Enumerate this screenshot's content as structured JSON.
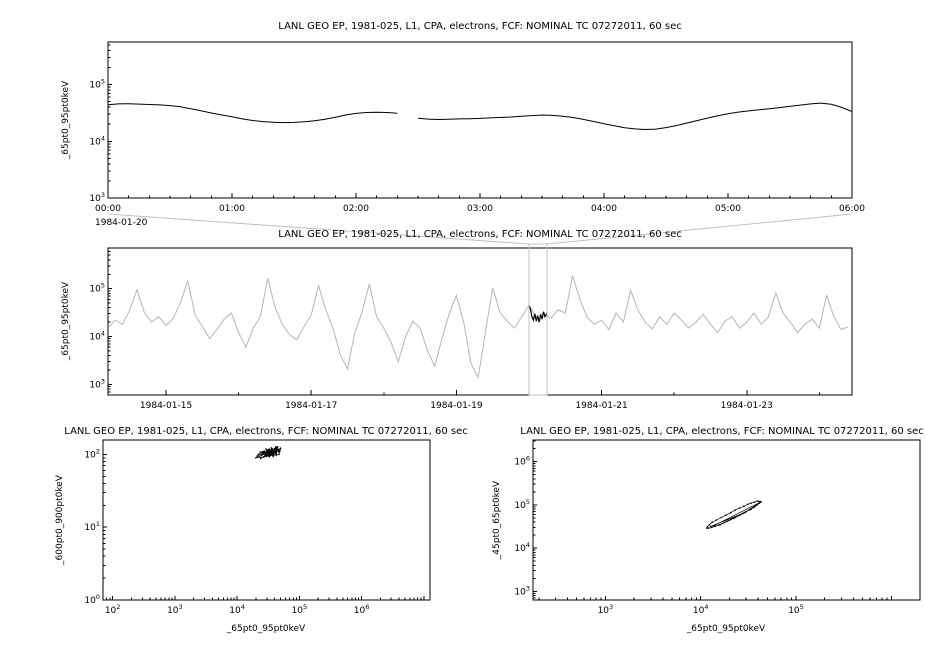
{
  "page": {
    "background": "#ffffff"
  },
  "colors": {
    "axis": "#000000",
    "series": "#000000",
    "overview_series": "#b5b5b5",
    "highlight_series": "#000000",
    "selection_box": "#c0c0c0"
  },
  "chart_data": [
    {
      "panel": "top-timeseries",
      "type": "line",
      "title": "LANL GEO EP, 1981-025, L1, CPA, electrons, FCF: NOMINAL TC 07272011, 60 sec",
      "ylabel": "_65pt0_95pt0keV",
      "x_start_date": "1984-01-20",
      "x_unit": "minutes from 1984-01-20T00:00 UT",
      "xlim": [
        0,
        360
      ],
      "xticks": [
        {
          "v": 0,
          "label": "00:00"
        },
        {
          "v": 60,
          "label": "01:00"
        },
        {
          "v": 120,
          "label": "02:00"
        },
        {
          "v": 180,
          "label": "03:00"
        },
        {
          "v": 240,
          "label": "04:00"
        },
        {
          "v": 300,
          "label": "05:00"
        },
        {
          "v": 360,
          "label": "06:00"
        }
      ],
      "y_scale": "log",
      "ylim": [
        1000,
        562000
      ],
      "ytick_exponents": [
        3,
        4,
        5
      ],
      "points": [
        [
          0,
          44000
        ],
        [
          5,
          45500
        ],
        [
          10,
          46000
        ],
        [
          15,
          45200
        ],
        [
          20,
          44500
        ],
        [
          25,
          43800
        ],
        [
          30,
          42500
        ],
        [
          35,
          40500
        ],
        [
          40,
          37500
        ],
        [
          45,
          34500
        ],
        [
          50,
          31500
        ],
        [
          55,
          29000
        ],
        [
          60,
          27000
        ],
        [
          65,
          24800
        ],
        [
          70,
          23200
        ],
        [
          75,
          22200
        ],
        [
          80,
          21600
        ],
        [
          85,
          21300
        ],
        [
          90,
          21500
        ],
        [
          95,
          22000
        ],
        [
          100,
          23000
        ],
        [
          105,
          24500
        ],
        [
          110,
          26500
        ],
        [
          115,
          29000
        ],
        [
          120,
          31000
        ],
        [
          125,
          32200
        ],
        [
          130,
          32600
        ],
        [
          135,
          32200
        ],
        [
          140,
          31200
        ],
        [
          145,
          null
        ],
        [
          150,
          25500
        ],
        [
          155,
          24600
        ],
        [
          160,
          24200
        ],
        [
          165,
          24400
        ],
        [
          170,
          24800
        ],
        [
          175,
          25000
        ],
        [
          180,
          25300
        ],
        [
          185,
          25800
        ],
        [
          190,
          26300
        ],
        [
          195,
          26800
        ],
        [
          200,
          27600
        ],
        [
          205,
          28300
        ],
        [
          210,
          29000
        ],
        [
          215,
          28600
        ],
        [
          220,
          27600
        ],
        [
          225,
          26200
        ],
        [
          230,
          24300
        ],
        [
          235,
          22300
        ],
        [
          240,
          20300
        ],
        [
          245,
          18700
        ],
        [
          250,
          17300
        ],
        [
          255,
          16500
        ],
        [
          260,
          16100
        ],
        [
          265,
          16400
        ],
        [
          270,
          17400
        ],
        [
          275,
          18900
        ],
        [
          280,
          20900
        ],
        [
          285,
          23100
        ],
        [
          290,
          25600
        ],
        [
          295,
          28100
        ],
        [
          300,
          30600
        ],
        [
          305,
          32700
        ],
        [
          310,
          34300
        ],
        [
          315,
          35800
        ],
        [
          320,
          37300
        ],
        [
          325,
          39200
        ],
        [
          330,
          41300
        ],
        [
          335,
          43400
        ],
        [
          340,
          45600
        ],
        [
          345,
          47100
        ],
        [
          350,
          44800
        ],
        [
          355,
          39500
        ],
        [
          360,
          33500
        ]
      ]
    },
    {
      "panel": "overview-timeseries",
      "type": "line",
      "title": "LANL GEO EP, 1981-025, L1, CPA, electrons, FCF: NOMINAL TC 07272011, 60 sec",
      "ylabel": "_65pt0_95pt0keV",
      "x_unit": "day of January 1984",
      "xlim": [
        14.2,
        24.45
      ],
      "xticks": [
        {
          "v": 15,
          "label": "1984-01-15"
        },
        {
          "v": 17,
          "label": "1984-01-17"
        },
        {
          "v": 19,
          "label": "1984-01-19"
        },
        {
          "v": 21,
          "label": "1984-01-21"
        },
        {
          "v": 23,
          "label": "1984-01-23"
        }
      ],
      "y_scale": "log",
      "ylim": [
        600,
        708000
      ],
      "ytick_exponents": [
        3,
        4,
        5
      ],
      "selection_window": [
        20.0,
        20.25
      ],
      "points": [
        [
          14.2,
          15000
        ],
        [
          14.3,
          22000
        ],
        [
          14.4,
          18000
        ],
        [
          14.5,
          36000
        ],
        [
          14.6,
          95000
        ],
        [
          14.7,
          32000
        ],
        [
          14.8,
          20000
        ],
        [
          14.9,
          26000
        ],
        [
          15.0,
          17000
        ],
        [
          15.1,
          24000
        ],
        [
          15.2,
          52000
        ],
        [
          15.3,
          145000
        ],
        [
          15.4,
          28000
        ],
        [
          15.5,
          16000
        ],
        [
          15.6,
          9000
        ],
        [
          15.7,
          14000
        ],
        [
          15.8,
          23000
        ],
        [
          15.9,
          31000
        ],
        [
          16.0,
          12000
        ],
        [
          16.1,
          6000
        ],
        [
          16.2,
          15000
        ],
        [
          16.3,
          26000
        ],
        [
          16.4,
          165000
        ],
        [
          16.5,
          42000
        ],
        [
          16.6,
          18000
        ],
        [
          16.7,
          11000
        ],
        [
          16.8,
          8500
        ],
        [
          16.9,
          16000
        ],
        [
          17.0,
          28000
        ],
        [
          17.1,
          115000
        ],
        [
          17.2,
          36000
        ],
        [
          17.3,
          15000
        ],
        [
          17.4,
          4200
        ],
        [
          17.5,
          2100
        ],
        [
          17.6,
          12000
        ],
        [
          17.7,
          32000
        ],
        [
          17.8,
          125000
        ],
        [
          17.9,
          26000
        ],
        [
          18.0,
          15000
        ],
        [
          18.1,
          7500
        ],
        [
          18.2,
          3000
        ],
        [
          18.3,
          10000
        ],
        [
          18.4,
          21000
        ],
        [
          18.5,
          15000
        ],
        [
          18.6,
          5200
        ],
        [
          18.7,
          2400
        ],
        [
          18.8,
          9000
        ],
        [
          18.9,
          30000
        ],
        [
          19.0,
          72000
        ],
        [
          19.1,
          20000
        ],
        [
          19.2,
          2800
        ],
        [
          19.3,
          1400
        ],
        [
          19.4,
          12000
        ],
        [
          19.5,
          105000
        ],
        [
          19.6,
          32000
        ],
        [
          19.7,
          21000
        ],
        [
          19.8,
          15000
        ],
        [
          19.9,
          26000
        ],
        [
          20.0,
          45000
        ],
        [
          20.1,
          26000
        ],
        [
          20.2,
          30000
        ],
        [
          20.3,
          24000
        ],
        [
          20.4,
          36000
        ],
        [
          20.5,
          31000
        ],
        [
          20.6,
          185000
        ],
        [
          20.7,
          62000
        ],
        [
          20.8,
          25000
        ],
        [
          20.9,
          18000
        ],
        [
          21.0,
          22000
        ],
        [
          21.1,
          14000
        ],
        [
          21.2,
          31000
        ],
        [
          21.3,
          20000
        ],
        [
          21.4,
          92000
        ],
        [
          21.5,
          36000
        ],
        [
          21.6,
          20000
        ],
        [
          21.7,
          14500
        ],
        [
          21.8,
          26000
        ],
        [
          21.9,
          18000
        ],
        [
          22.0,
          31000
        ],
        [
          22.1,
          22000
        ],
        [
          22.2,
          15000
        ],
        [
          22.3,
          20000
        ],
        [
          22.4,
          29000
        ],
        [
          22.5,
          18000
        ],
        [
          22.6,
          12000
        ],
        [
          22.7,
          21000
        ],
        [
          22.8,
          26000
        ],
        [
          22.9,
          15000
        ],
        [
          23.0,
          20000
        ],
        [
          23.1,
          31000
        ],
        [
          23.2,
          18000
        ],
        [
          23.3,
          26000
        ],
        [
          23.4,
          82000
        ],
        [
          23.5,
          31000
        ],
        [
          23.6,
          20000
        ],
        [
          23.7,
          12000
        ],
        [
          23.8,
          18000
        ],
        [
          23.9,
          23000
        ],
        [
          24.0,
          15000
        ],
        [
          24.1,
          72000
        ],
        [
          24.2,
          26000
        ],
        [
          24.3,
          14000
        ],
        [
          24.4,
          16000
        ]
      ],
      "highlight_points": [
        [
          20.0,
          45000
        ],
        [
          20.02,
          38000
        ],
        [
          20.04,
          26000
        ],
        [
          20.06,
          22000
        ],
        [
          20.08,
          30000
        ],
        [
          20.1,
          21000
        ],
        [
          20.12,
          27000
        ],
        [
          20.14,
          20000
        ],
        [
          20.16,
          29000
        ],
        [
          20.18,
          23000
        ],
        [
          20.2,
          33000
        ],
        [
          20.22,
          26000
        ],
        [
          20.25,
          31000
        ]
      ]
    },
    {
      "panel": "scatter-600-900-vs-65-95",
      "type": "scatter",
      "title": "LANL GEO EP, 1981-025, L1, CPA, electrons, FCF: NOMINAL TC 07272011, 60 sec",
      "xlabel": "_65pt0_95pt0keV",
      "ylabel": "_600pt0_900pt0keV",
      "x_scale": "log",
      "y_scale": "log",
      "xlim": [
        70,
        12600000
      ],
      "ylim": [
        1,
        158
      ],
      "xtick_exponents": [
        2,
        3,
        4,
        5,
        6
      ],
      "ytick_exponents": [
        0,
        1,
        2
      ],
      "points": [
        [
          21000,
          95
        ],
        [
          23000,
          102
        ],
        [
          25000,
          98
        ],
        [
          26000,
          110
        ],
        [
          28000,
          105
        ],
        [
          30000,
          112
        ],
        [
          32000,
          100
        ],
        [
          33000,
          118
        ],
        [
          35000,
          108
        ],
        [
          36000,
          115
        ],
        [
          38000,
          104
        ],
        [
          40000,
          120
        ],
        [
          42000,
          110
        ],
        [
          44000,
          125
        ],
        [
          46000,
          115
        ],
        [
          48000,
          108
        ],
        [
          50000,
          122
        ],
        [
          27000,
          92
        ],
        [
          29000,
          99
        ],
        [
          31000,
          107
        ],
        [
          34000,
          96
        ],
        [
          37000,
          113
        ],
        [
          39000,
          101
        ],
        [
          41000,
          117
        ],
        [
          43000,
          106
        ],
        [
          45000,
          128
        ],
        [
          24000,
          88
        ],
        [
          22000,
          100
        ],
        [
          26500,
          103
        ],
        [
          28500,
          96
        ],
        [
          30500,
          109
        ],
        [
          32500,
          114
        ],
        [
          34500,
          99
        ],
        [
          36500,
          120
        ],
        [
          38500,
          107
        ],
        [
          40500,
          112
        ],
        [
          42500,
          98
        ],
        [
          44500,
          118
        ],
        [
          46500,
          109
        ],
        [
          48500,
          115
        ],
        [
          25500,
          105
        ],
        [
          27500,
          111
        ],
        [
          29500,
          94
        ],
        [
          31500,
          116
        ],
        [
          33500,
          102
        ],
        [
          35500,
          123
        ],
        [
          37500,
          97
        ],
        [
          39500,
          110
        ],
        [
          41500,
          104
        ],
        [
          43500,
          121
        ],
        [
          20000,
          90
        ],
        [
          47000,
          100
        ],
        [
          49000,
          113
        ],
        [
          23500,
          108
        ],
        [
          33000,
          93
        ],
        [
          29000,
          119
        ],
        [
          36000,
          101
        ],
        [
          31000,
          97
        ],
        [
          42000,
          127
        ],
        [
          38000,
          94
        ]
      ]
    },
    {
      "panel": "scatter-45-65-vs-65-95",
      "type": "scatter",
      "title": "LANL GEO EP, 1981-025, L1, CPA, electrons, FCF: NOMINAL TC 07272011, 60 sec",
      "xlabel": "_65pt0_95pt0keV",
      "ylabel": "_45pt0_65pt0keV",
      "x_scale": "log",
      "y_scale": "log",
      "xlim": [
        174,
        2000000
      ],
      "ylim": [
        630,
        3160000
      ],
      "xtick_exponents": [
        3,
        4,
        5
      ],
      "ytick_exponents": [
        3,
        4,
        5,
        6
      ],
      "points": [
        [
          42500,
          118000
        ],
        [
          40800,
          121000
        ],
        [
          39200,
          122500
        ],
        [
          36500,
          115000
        ],
        [
          33800,
          110000
        ],
        [
          31200,
          103000
        ],
        [
          28400,
          93000
        ],
        [
          25600,
          84000
        ],
        [
          23000,
          76000
        ],
        [
          20700,
          66000
        ],
        [
          18400,
          57500
        ],
        [
          16400,
          51000
        ],
        [
          14700,
          44500
        ],
        [
          13200,
          39500
        ],
        [
          12300,
          34500
        ],
        [
          11800,
          31000
        ],
        [
          11600,
          29000
        ],
        [
          12100,
          28800
        ],
        [
          13000,
          30000
        ],
        [
          14300,
          32000
        ],
        [
          16000,
          35000
        ],
        [
          18000,
          39500
        ],
        [
          20300,
          44500
        ],
        [
          22800,
          50500
        ],
        [
          25700,
          57500
        ],
        [
          28900,
          66000
        ],
        [
          32300,
          76000
        ],
        [
          35800,
          87000
        ],
        [
          38900,
          99000
        ],
        [
          41300,
          110000
        ],
        [
          43000,
          117000
        ],
        [
          30000,
          70000
        ],
        [
          27000,
          62000
        ],
        [
          24000,
          54000
        ],
        [
          21000,
          47000
        ],
        [
          19000,
          42000
        ],
        [
          34000,
          80000
        ],
        [
          37000,
          91000
        ],
        [
          26000,
          59000
        ],
        [
          17000,
          37000
        ],
        [
          15500,
          34000
        ],
        [
          22000,
          48500
        ],
        [
          29500,
          68000
        ],
        [
          33000,
          78000
        ],
        [
          36000,
          88000
        ],
        [
          39500,
          104000
        ],
        [
          41800,
          114000
        ],
        [
          13800,
          33000
        ],
        [
          12700,
          31500
        ],
        [
          28000,
          64000
        ]
      ]
    }
  ]
}
